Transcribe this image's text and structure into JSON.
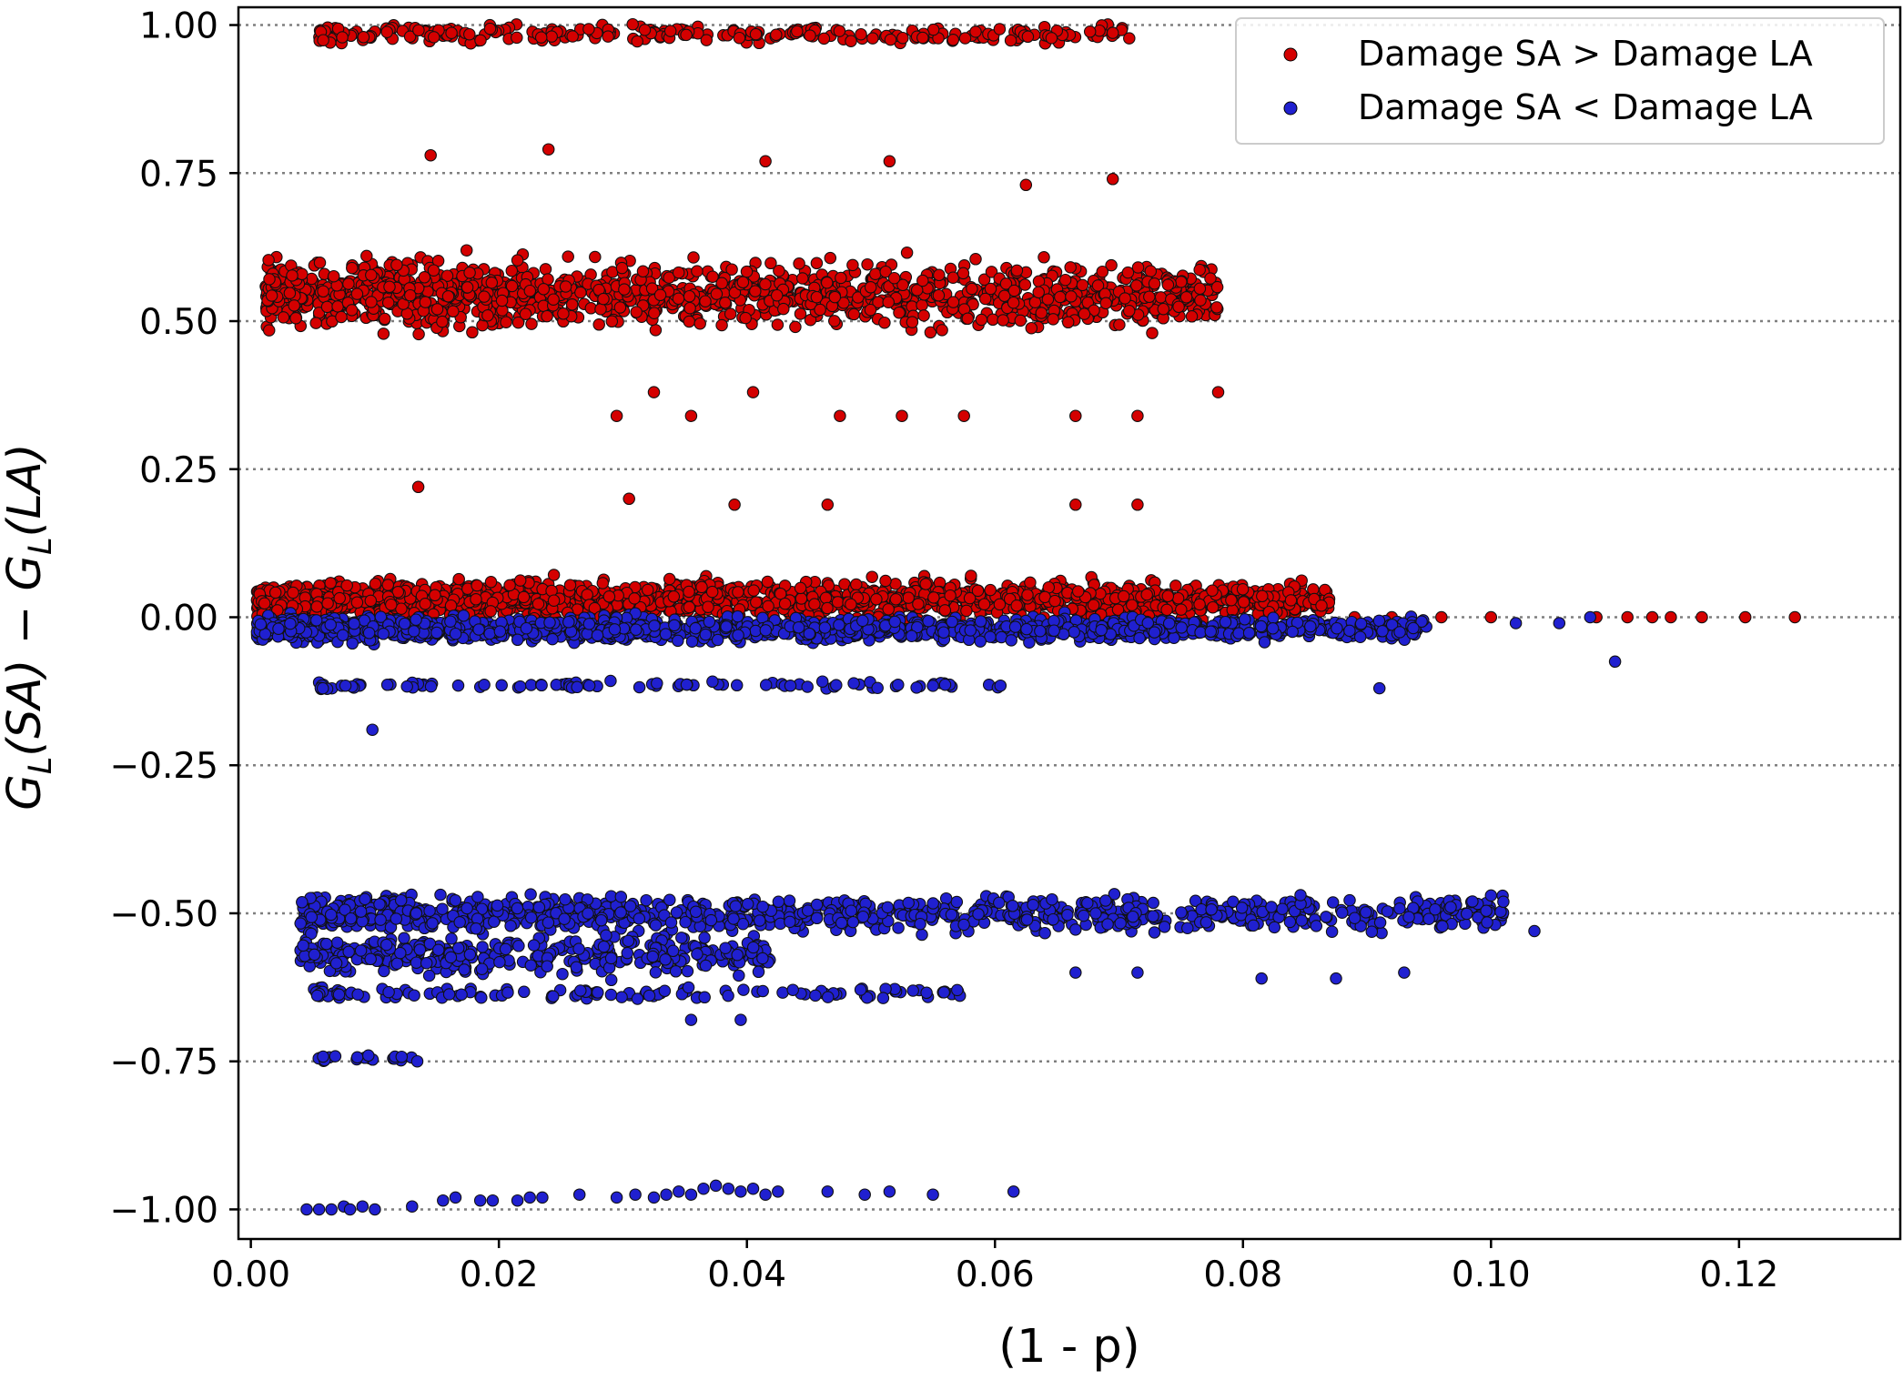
{
  "chart_data": {
    "type": "scatter",
    "xlabel": "(1 - p)",
    "ylabel_parts": {
      "base1": "G",
      "sub1": "L",
      "arg1": "(SA)",
      "minus": " − ",
      "base2": "G",
      "sub2": "L",
      "arg2": "(LA)"
    },
    "xlim": [
      -0.001,
      0.133
    ],
    "ylim": [
      -1.05,
      1.03
    ],
    "x_ticks": [
      0.0,
      0.02,
      0.04,
      0.06,
      0.08,
      0.1,
      0.12
    ],
    "x_tick_labels": [
      "0.00",
      "0.02",
      "0.04",
      "0.06",
      "0.08",
      "0.10",
      "0.12"
    ],
    "y_ticks": [
      1.0,
      0.75,
      0.5,
      0.25,
      0.0,
      -0.25,
      -0.5,
      -0.75,
      -1.0
    ],
    "y_tick_labels": [
      "1.00",
      "0.75",
      "0.50",
      "0.25",
      "0.00",
      "−0.25",
      "−0.50",
      "−0.75",
      "−1.00"
    ],
    "grid": "horizontal dotted",
    "legend_position": "top-right",
    "series": [
      {
        "name": "Damage SA > Damage LA",
        "color": "#d40000",
        "clusters": [
          {
            "x_range": [
              0.0055,
              0.071
            ],
            "y_center": 0.985,
            "y_spread": 0.015,
            "count": 260
          },
          {
            "x_range": [
              0.0012,
              0.078
            ],
            "y_center": 0.545,
            "y_spread": 0.055,
            "count": 1300
          },
          {
            "x_range": [
              0.0005,
              0.087
            ],
            "y_center": 0.03,
            "y_spread": 0.03,
            "count": 1600
          }
        ],
        "points": [
          {
            "x": 0.0135,
            "y": 0.22
          },
          {
            "x": 0.0305,
            "y": 0.2
          },
          {
            "x": 0.039,
            "y": 0.19
          },
          {
            "x": 0.0465,
            "y": 0.19
          },
          {
            "x": 0.0715,
            "y": 0.19
          },
          {
            "x": 0.0665,
            "y": 0.19
          },
          {
            "x": 0.024,
            "y": 0.79
          },
          {
            "x": 0.0145,
            "y": 0.78
          },
          {
            "x": 0.0515,
            "y": 0.77
          },
          {
            "x": 0.0415,
            "y": 0.77
          },
          {
            "x": 0.0295,
            "y": 0.34
          },
          {
            "x": 0.0355,
            "y": 0.34
          },
          {
            "x": 0.0475,
            "y": 0.34
          },
          {
            "x": 0.0525,
            "y": 0.34
          },
          {
            "x": 0.0575,
            "y": 0.34
          },
          {
            "x": 0.0665,
            "y": 0.34
          },
          {
            "x": 0.0715,
            "y": 0.34
          },
          {
            "x": 0.0325,
            "y": 0.38
          },
          {
            "x": 0.0405,
            "y": 0.38
          },
          {
            "x": 0.078,
            "y": 0.38
          },
          {
            "x": 0.0695,
            "y": 0.74
          },
          {
            "x": 0.0625,
            "y": 0.73
          },
          {
            "x": 0.089,
            "y": 0.0
          },
          {
            "x": 0.092,
            "y": 0.0
          },
          {
            "x": 0.096,
            "y": 0.0
          },
          {
            "x": 0.1,
            "y": 0.0
          },
          {
            "x": 0.1085,
            "y": 0.0
          },
          {
            "x": 0.111,
            "y": 0.0
          },
          {
            "x": 0.113,
            "y": 0.0
          },
          {
            "x": 0.1145,
            "y": 0.0
          },
          {
            "x": 0.117,
            "y": 0.0
          },
          {
            "x": 0.1205,
            "y": 0.0
          },
          {
            "x": 0.1245,
            "y": 0.0
          }
        ]
      },
      {
        "name": "Damage SA < Damage LA",
        "color": "#2020d0",
        "clusters": [
          {
            "x_range": [
              0.0005,
              0.095
            ],
            "y_center": -0.02,
            "y_spread": 0.02,
            "count": 1500
          },
          {
            "x_range": [
              0.0055,
              0.061
            ],
            "y_center": -0.115,
            "y_spread": 0.006,
            "count": 90
          },
          {
            "x_range": [
              0.004,
              0.101
            ],
            "y_center": -0.5,
            "y_spread": 0.03,
            "count": 900
          },
          {
            "x_range": [
              0.004,
              0.042
            ],
            "y_center": -0.57,
            "y_spread": 0.035,
            "count": 350
          },
          {
            "x_range": [
              0.005,
              0.058
            ],
            "y_center": -0.635,
            "y_spread": 0.01,
            "count": 120
          },
          {
            "x_range": [
              0.005,
              0.0135
            ],
            "y_center": -0.745,
            "y_spread": 0.006,
            "count": 20
          }
        ],
        "points": [
          {
            "x": 0.0098,
            "y": -0.19
          },
          {
            "x": 0.0058,
            "y": -0.12
          },
          {
            "x": 0.11,
            "y": -0.075
          },
          {
            "x": 0.1035,
            "y": -0.53
          },
          {
            "x": 0.093,
            "y": -0.6
          },
          {
            "x": 0.0355,
            "y": -0.68
          },
          {
            "x": 0.0395,
            "y": -0.68
          },
          {
            "x": 0.0665,
            "y": -0.6
          },
          {
            "x": 0.0715,
            "y": -0.6
          },
          {
            "x": 0.0815,
            "y": -0.61
          },
          {
            "x": 0.0875,
            "y": -0.61
          },
          {
            "x": 0.091,
            "y": -0.12
          },
          {
            "x": 0.1,
            "y": -0.47
          },
          {
            "x": 0.0985,
            "y": -0.48
          },
          {
            "x": 0.1055,
            "y": -0.01
          },
          {
            "x": 0.108,
            "y": 0.0
          },
          {
            "x": 0.102,
            "y": -0.01
          },
          {
            "x": 0.0045,
            "y": -1.0
          },
          {
            "x": 0.0055,
            "y": -1.0
          },
          {
            "x": 0.0065,
            "y": -1.0
          },
          {
            "x": 0.0075,
            "y": -0.995
          },
          {
            "x": 0.008,
            "y": -1.0
          },
          {
            "x": 0.009,
            "y": -0.995
          },
          {
            "x": 0.01,
            "y": -1.0
          },
          {
            "x": 0.013,
            "y": -0.995
          },
          {
            "x": 0.0155,
            "y": -0.985
          },
          {
            "x": 0.0165,
            "y": -0.98
          },
          {
            "x": 0.0185,
            "y": -0.985
          },
          {
            "x": 0.0195,
            "y": -0.985
          },
          {
            "x": 0.0215,
            "y": -0.985
          },
          {
            "x": 0.0225,
            "y": -0.98
          },
          {
            "x": 0.0235,
            "y": -0.98
          },
          {
            "x": 0.0265,
            "y": -0.975
          },
          {
            "x": 0.0295,
            "y": -0.98
          },
          {
            "x": 0.031,
            "y": -0.975
          },
          {
            "x": 0.0325,
            "y": -0.98
          },
          {
            "x": 0.0335,
            "y": -0.975
          },
          {
            "x": 0.0345,
            "y": -0.97
          },
          {
            "x": 0.0355,
            "y": -0.975
          },
          {
            "x": 0.0365,
            "y": -0.965
          },
          {
            "x": 0.0375,
            "y": -0.96
          },
          {
            "x": 0.0385,
            "y": -0.965
          },
          {
            "x": 0.0395,
            "y": -0.97
          },
          {
            "x": 0.0405,
            "y": -0.965
          },
          {
            "x": 0.0415,
            "y": -0.975
          },
          {
            "x": 0.0425,
            "y": -0.97
          },
          {
            "x": 0.0465,
            "y": -0.97
          },
          {
            "x": 0.0495,
            "y": -0.975
          },
          {
            "x": 0.0515,
            "y": -0.97
          },
          {
            "x": 0.055,
            "y": -0.975
          },
          {
            "x": 0.0615,
            "y": -0.97
          }
        ]
      }
    ]
  }
}
